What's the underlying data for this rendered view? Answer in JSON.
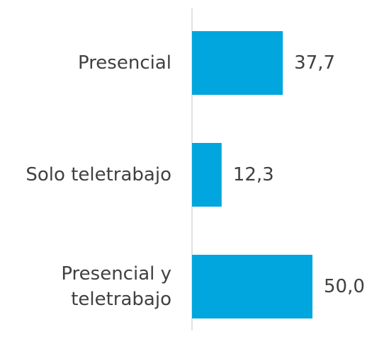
{
  "chart_data": {
    "type": "bar",
    "orientation": "horizontal",
    "categories": [
      "Presencial",
      "Solo teletrabajo",
      "Presencial y teletrabajo"
    ],
    "values": [
      37.7,
      12.3,
      50.0
    ],
    "value_labels": [
      "37,7",
      "12,3",
      "50,0"
    ],
    "color": "#00a6dd"
  }
}
